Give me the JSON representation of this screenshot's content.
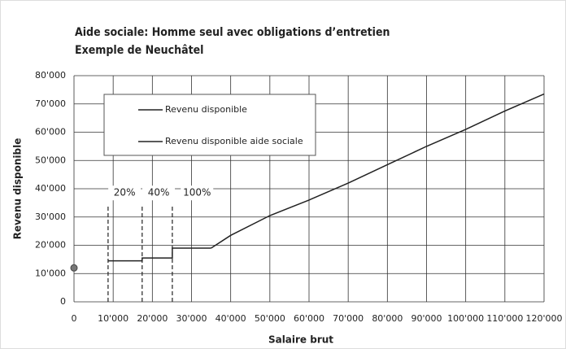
{
  "chart_data": {
    "type": "line",
    "title": "Aide sociale: Homme seul avec obligations d’entretien",
    "subtitle": "Exemple de Neuchâtel",
    "x_label": "Salaire brut",
    "y_label": "Revenu disponible",
    "xlim": [
      0,
      120000
    ],
    "ylim": [
      0,
      80000
    ],
    "xticks": [
      0,
      {
        "value": 10000,
        "label": "10'000"
      },
      {
        "value": 20000,
        "label": "20'000"
      },
      {
        "value": 30000,
        "label": "30'000"
      },
      {
        "value": 40000,
        "label": "40'000"
      },
      {
        "value": 50000,
        "label": "50'000"
      },
      {
        "value": 60000,
        "label": "60'000"
      },
      {
        "value": 70000,
        "label": "70'000"
      },
      {
        "value": 80000,
        "label": "80'000"
      },
      {
        "value": 90000,
        "label": "90'000"
      },
      {
        "value": 100000,
        "label": "100'000"
      },
      {
        "value": 110000,
        "label": "110'000"
      },
      {
        "value": 120000,
        "label": "120'000"
      }
    ],
    "yticks": [
      0,
      {
        "value": 10000,
        "label": "10'000"
      },
      {
        "value": 20000,
        "label": "20'000"
      },
      {
        "value": 30000,
        "label": "30'000"
      },
      {
        "value": 40000,
        "label": "40'000"
      },
      {
        "value": 50000,
        "label": "50'000"
      },
      {
        "value": 60000,
        "label": "60'000"
      },
      {
        "value": 70000,
        "label": "70'000"
      },
      {
        "value": 80000,
        "label": "80'000"
      }
    ],
    "grid": true,
    "legend": "upper left",
    "series": [
      {
        "name": "Revenu disponible",
        "color": "#222222",
        "x": [
          35000,
          40000,
          50000,
          60000,
          70000,
          80000,
          90000,
          100000,
          110000,
          120000
        ],
        "values": [
          19000,
          23500,
          30500,
          36000,
          42000,
          48500,
          55000,
          61000,
          67500,
          73500
        ]
      },
      {
        "name": "Revenu disponible aide sociale",
        "color": "#222222",
        "x": [
          0,
          8700,
          8700,
          17400,
          17400,
          25100,
          25100,
          35000
        ],
        "values": [
          12000,
          null,
          14500,
          14500,
          15500,
          15500,
          19000,
          19000
        ]
      }
    ],
    "reference_lines": {
      "x": [
        8700,
        17400,
        25100
      ],
      "top": 34000
    },
    "annotations": [
      {
        "text": "20%",
        "x": 12900,
        "y": 38500
      },
      {
        "text": "40%",
        "x": 21600,
        "y": 38500
      },
      {
        "text": "100%",
        "x": 31400,
        "y": 38500
      }
    ]
  }
}
